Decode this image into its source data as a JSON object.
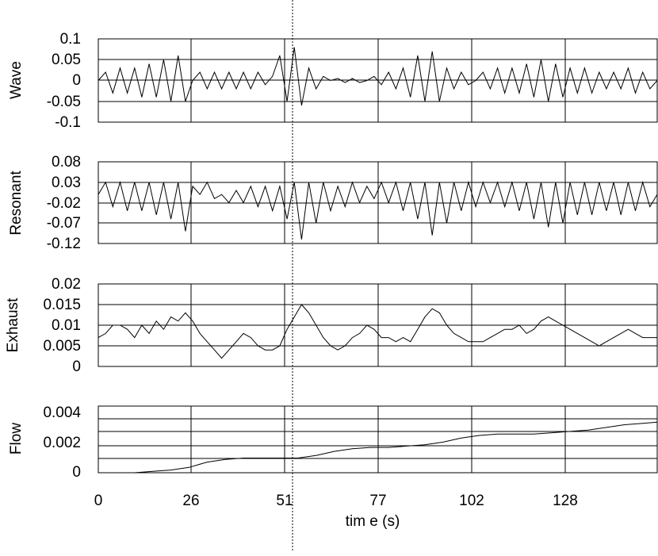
{
  "chart_data": [
    {
      "type": "line",
      "ylabel": "Wave",
      "ylim": [
        -0.1,
        0.1
      ],
      "yticks": [
        "0.1",
        "0.05",
        "0",
        "-0.05",
        "-0.1"
      ],
      "grid": true,
      "series": [
        {
          "x": [
            0,
            2,
            4,
            6,
            8,
            10,
            12,
            14,
            16,
            18,
            20,
            22,
            24,
            26,
            28,
            30,
            32,
            34,
            36,
            38,
            40,
            42,
            44,
            46,
            48,
            50,
            52,
            54,
            56,
            58,
            60,
            62,
            64,
            66,
            68,
            70,
            72,
            74,
            76,
            78,
            80,
            82,
            84,
            86,
            88,
            90,
            92,
            94,
            96,
            98,
            100,
            102,
            104,
            106,
            108,
            110,
            112,
            114,
            116,
            118,
            120,
            122,
            124,
            126,
            128,
            130,
            132,
            134,
            136,
            138,
            140,
            142,
            144,
            146,
            148,
            150,
            152,
            154
          ],
          "values": [
            0.0,
            0.02,
            -0.03,
            0.03,
            -0.03,
            0.03,
            -0.04,
            0.04,
            -0.04,
            0.05,
            -0.05,
            0.06,
            -0.05,
            0.0,
            0.02,
            -0.02,
            0.02,
            -0.02,
            0.02,
            -0.02,
            0.02,
            -0.02,
            0.02,
            -0.01,
            0.01,
            0.06,
            -0.05,
            0.08,
            -0.06,
            0.03,
            -0.02,
            0.01,
            0.0,
            0.005,
            -0.005,
            0.005,
            -0.005,
            0.0,
            0.01,
            -0.01,
            0.02,
            -0.02,
            0.03,
            -0.04,
            0.06,
            -0.05,
            0.07,
            -0.05,
            0.03,
            -0.02,
            0.02,
            -0.01,
            0.0,
            0.02,
            -0.02,
            0.03,
            -0.03,
            0.03,
            -0.03,
            0.04,
            -0.04,
            0.05,
            -0.05,
            0.04,
            -0.04,
            0.03,
            -0.03,
            0.03,
            -0.03,
            0.02,
            -0.02,
            0.02,
            -0.02,
            0.03,
            -0.03,
            0.02,
            -0.02,
            0.0
          ]
        }
      ]
    },
    {
      "type": "line",
      "ylabel": "Resonant",
      "ylim": [
        -0.12,
        0.08
      ],
      "yticks": [
        "0.08",
        "0.03",
        "-0.02",
        "-0.07",
        "-0.12"
      ],
      "grid": true,
      "series": [
        {
          "x": [
            0,
            2,
            4,
            6,
            8,
            10,
            12,
            14,
            16,
            18,
            20,
            22,
            24,
            26,
            28,
            30,
            32,
            34,
            36,
            38,
            40,
            42,
            44,
            46,
            48,
            50,
            52,
            54,
            56,
            58,
            60,
            62,
            64,
            66,
            68,
            70,
            72,
            74,
            76,
            78,
            80,
            82,
            84,
            86,
            88,
            90,
            92,
            94,
            96,
            98,
            100,
            102,
            104,
            106,
            108,
            110,
            112,
            114,
            116,
            118,
            120,
            122,
            124,
            126,
            128,
            130,
            132,
            134,
            136,
            138,
            140,
            142,
            144,
            146,
            148,
            150,
            152,
            154
          ],
          "values": [
            0.0,
            0.03,
            -0.03,
            0.03,
            -0.04,
            0.03,
            -0.04,
            0.03,
            -0.05,
            0.03,
            -0.06,
            0.03,
            -0.09,
            0.02,
            0.0,
            0.03,
            -0.01,
            0.0,
            -0.02,
            0.01,
            -0.02,
            0.02,
            -0.03,
            0.02,
            -0.04,
            0.02,
            -0.06,
            0.03,
            -0.11,
            0.03,
            -0.07,
            0.03,
            -0.04,
            0.02,
            -0.03,
            0.03,
            -0.02,
            0.02,
            -0.01,
            0.03,
            -0.02,
            0.03,
            -0.04,
            0.03,
            -0.06,
            0.03,
            -0.1,
            0.03,
            -0.07,
            0.03,
            -0.04,
            0.03,
            -0.03,
            0.03,
            -0.02,
            0.03,
            -0.03,
            0.03,
            -0.04,
            0.03,
            -0.06,
            0.03,
            -0.08,
            0.03,
            -0.07,
            0.03,
            -0.05,
            0.03,
            -0.05,
            0.03,
            -0.04,
            0.03,
            -0.05,
            0.03,
            -0.04,
            0.03,
            -0.03,
            0.0
          ]
        }
      ]
    },
    {
      "type": "line",
      "ylabel": "Exhaust",
      "ylim": [
        0,
        0.02
      ],
      "yticks": [
        "0.02",
        "0.015",
        "0.01",
        "0.005",
        "0"
      ],
      "grid": true,
      "series": [
        {
          "x": [
            0,
            2,
            4,
            6,
            8,
            10,
            12,
            14,
            16,
            18,
            20,
            22,
            24,
            26,
            28,
            30,
            32,
            34,
            36,
            38,
            40,
            42,
            44,
            46,
            48,
            50,
            52,
            54,
            56,
            58,
            60,
            62,
            64,
            66,
            68,
            70,
            72,
            74,
            76,
            78,
            80,
            82,
            84,
            86,
            88,
            90,
            92,
            94,
            96,
            98,
            100,
            102,
            104,
            106,
            108,
            110,
            112,
            114,
            116,
            118,
            120,
            122,
            124,
            126,
            128,
            130,
            132,
            134,
            136,
            138,
            140,
            142,
            144,
            146,
            148,
            150,
            152,
            154
          ],
          "values": [
            0.007,
            0.008,
            0.01,
            0.01,
            0.009,
            0.007,
            0.01,
            0.008,
            0.011,
            0.009,
            0.012,
            0.011,
            0.013,
            0.011,
            0.008,
            0.006,
            0.004,
            0.002,
            0.004,
            0.006,
            0.008,
            0.007,
            0.005,
            0.004,
            0.004,
            0.005,
            0.009,
            0.012,
            0.015,
            0.013,
            0.01,
            0.007,
            0.005,
            0.004,
            0.005,
            0.007,
            0.008,
            0.01,
            0.009,
            0.007,
            0.007,
            0.006,
            0.007,
            0.006,
            0.009,
            0.012,
            0.014,
            0.013,
            0.01,
            0.008,
            0.007,
            0.006,
            0.006,
            0.006,
            0.007,
            0.008,
            0.009,
            0.009,
            0.01,
            0.008,
            0.009,
            0.011,
            0.012,
            0.011,
            0.01,
            0.009,
            0.008,
            0.007,
            0.006,
            0.005,
            0.006,
            0.007,
            0.008,
            0.009,
            0.008,
            0.007,
            0.007,
            0.007
          ]
        }
      ]
    },
    {
      "type": "line",
      "ylabel": "Flow",
      "xlabel": "tim e (s)",
      "ylim": [
        0,
        0.005
      ],
      "yticks": [
        "0.004",
        "0.002",
        "0"
      ],
      "xticks": [
        "0",
        "26",
        "51",
        "77",
        "102",
        "128"
      ],
      "grid": true,
      "series": [
        {
          "x": [
            0,
            5,
            10,
            15,
            20,
            25,
            30,
            35,
            40,
            45,
            50,
            55,
            60,
            65,
            70,
            75,
            80,
            85,
            90,
            95,
            100,
            105,
            110,
            115,
            120,
            125,
            130,
            135,
            140,
            145,
            150,
            154
          ],
          "values": [
            0.0,
            0.0,
            0.0,
            0.0001,
            0.0002,
            0.0004,
            0.0008,
            0.001,
            0.0011,
            0.0011,
            0.0011,
            0.0011,
            0.0013,
            0.0016,
            0.0018,
            0.0019,
            0.0019,
            0.002,
            0.0021,
            0.0023,
            0.0026,
            0.0028,
            0.0029,
            0.0029,
            0.0029,
            0.003,
            0.0031,
            0.0032,
            0.0034,
            0.0036,
            0.0037,
            0.0038
          ]
        }
      ]
    }
  ]
}
